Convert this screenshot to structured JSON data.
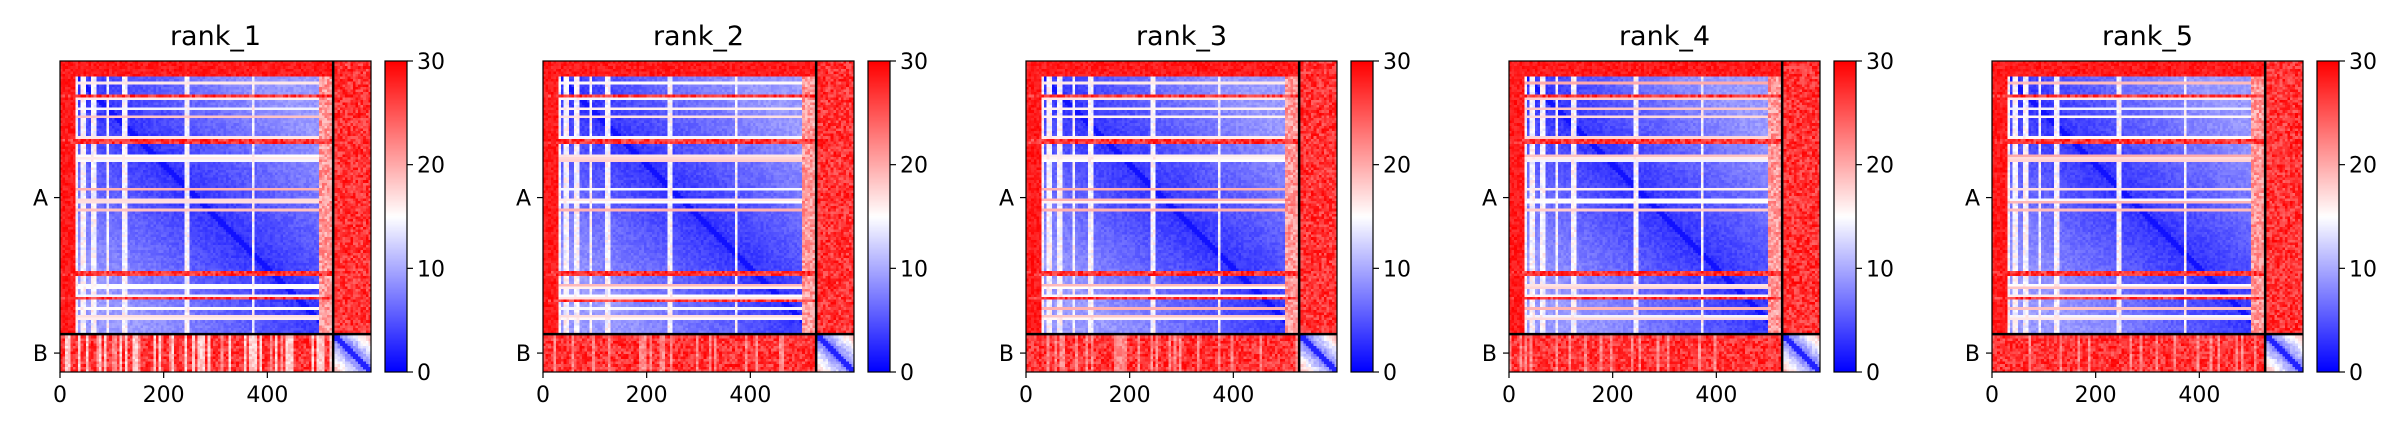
{
  "chart_data": [
    {
      "type": "heatmap",
      "title": "rank_1",
      "chains": [
        "A",
        "B"
      ],
      "x_ticks": [
        0,
        200,
        400
      ],
      "xlim": [
        0,
        600
      ],
      "chain_boundary": 527,
      "total_length": 600,
      "colorbar": {
        "ticks": [
          0,
          10,
          20,
          30
        ],
        "range": [
          0,
          30
        ],
        "colormap": "bwr"
      },
      "band_rows": [
        44,
        70,
        93,
        107,
        150,
        182,
        190,
        248,
        270,
        288,
        410,
        435,
        455,
        478,
        495
      ],
      "red_row_bands": [
        [
          65,
          71
        ],
        [
          93,
          96
        ],
        [
          150,
          162
        ],
        [
          405,
          415
        ],
        [
          455,
          462
        ]
      ],
      "white_cols": [
        [
          30,
          35
        ],
        [
          42,
          50
        ],
        [
          60,
          70
        ],
        [
          88,
          96
        ],
        [
          118,
          128
        ],
        [
          238,
          248
        ],
        [
          368,
          374
        ]
      ],
      "noise_seed": 11
    },
    {
      "type": "heatmap",
      "title": "rank_2",
      "chains": [
        "A",
        "B"
      ],
      "x_ticks": [
        0,
        200,
        400
      ],
      "xlim": [
        0,
        600
      ],
      "chain_boundary": 527,
      "total_length": 600,
      "colorbar": {
        "ticks": [
          0,
          10,
          20,
          30
        ],
        "range": [
          0,
          30
        ],
        "colormap": "bwr"
      },
      "band_rows": [
        44,
        70,
        93,
        107,
        150,
        182,
        190,
        248,
        270,
        288,
        410,
        435,
        455,
        478,
        495
      ],
      "red_row_bands": [
        [
          65,
          71
        ],
        [
          93,
          96
        ],
        [
          150,
          160
        ],
        [
          405,
          413
        ],
        [
          458,
          463
        ]
      ],
      "white_cols": [
        [
          30,
          35
        ],
        [
          42,
          50
        ],
        [
          60,
          70
        ],
        [
          88,
          96
        ],
        [
          118,
          128
        ],
        [
          238,
          248
        ],
        [
          368,
          374
        ]
      ],
      "noise_seed": 23
    },
    {
      "type": "heatmap",
      "title": "rank_3",
      "chains": [
        "A",
        "B"
      ],
      "x_ticks": [
        0,
        200,
        400
      ],
      "xlim": [
        0,
        600
      ],
      "chain_boundary": 527,
      "total_length": 600,
      "colorbar": {
        "ticks": [
          0,
          10,
          20,
          30
        ],
        "range": [
          0,
          30
        ],
        "colormap": "bwr"
      },
      "band_rows": [
        44,
        70,
        93,
        107,
        150,
        182,
        190,
        248,
        270,
        288,
        410,
        435,
        455,
        478,
        495
      ],
      "red_row_bands": [
        [
          65,
          71
        ],
        [
          93,
          96
        ],
        [
          150,
          162
        ],
        [
          405,
          415
        ],
        [
          455,
          462
        ]
      ],
      "white_cols": [
        [
          30,
          35
        ],
        [
          42,
          50
        ],
        [
          60,
          70
        ],
        [
          88,
          96
        ],
        [
          118,
          128
        ],
        [
          238,
          248
        ],
        [
          368,
          374
        ]
      ],
      "noise_seed": 37
    },
    {
      "type": "heatmap",
      "title": "rank_4",
      "chains": [
        "A",
        "B"
      ],
      "x_ticks": [
        0,
        200,
        400
      ],
      "xlim": [
        0,
        600
      ],
      "chain_boundary": 527,
      "total_length": 600,
      "colorbar": {
        "ticks": [
          0,
          10,
          20,
          30
        ],
        "range": [
          0,
          30
        ],
        "colormap": "bwr"
      },
      "band_rows": [
        44,
        70,
        93,
        107,
        150,
        182,
        190,
        248,
        270,
        288,
        410,
        435,
        455,
        478,
        495
      ],
      "red_row_bands": [
        [
          65,
          71
        ],
        [
          93,
          96
        ],
        [
          150,
          162
        ],
        [
          405,
          415
        ],
        [
          455,
          462
        ]
      ],
      "white_cols": [
        [
          30,
          35
        ],
        [
          42,
          50
        ],
        [
          60,
          70
        ],
        [
          88,
          96
        ],
        [
          118,
          128
        ],
        [
          238,
          248
        ],
        [
          368,
          374
        ]
      ],
      "noise_seed": 41
    },
    {
      "type": "heatmap",
      "title": "rank_5",
      "chains": [
        "A",
        "B"
      ],
      "x_ticks": [
        0,
        200,
        400
      ],
      "xlim": [
        0,
        600
      ],
      "chain_boundary": 527,
      "total_length": 600,
      "colorbar": {
        "ticks": [
          0,
          10,
          20,
          30
        ],
        "range": [
          0,
          30
        ],
        "colormap": "bwr"
      },
      "band_rows": [
        44,
        70,
        93,
        107,
        150,
        182,
        190,
        248,
        270,
        288,
        410,
        435,
        455,
        478,
        495
      ],
      "red_row_bands": [
        [
          65,
          71
        ],
        [
          93,
          96
        ],
        [
          150,
          162
        ],
        [
          405,
          415
        ],
        [
          455,
          462
        ]
      ],
      "white_cols": [
        [
          30,
          35
        ],
        [
          42,
          50
        ],
        [
          60,
          70
        ],
        [
          88,
          96
        ],
        [
          118,
          128
        ],
        [
          238,
          248
        ],
        [
          368,
          374
        ]
      ],
      "noise_seed": 53
    }
  ],
  "colors": {
    "low": "#0000ff",
    "mid": "#ffffff",
    "high": "#ff0000",
    "divider": "#000000"
  }
}
